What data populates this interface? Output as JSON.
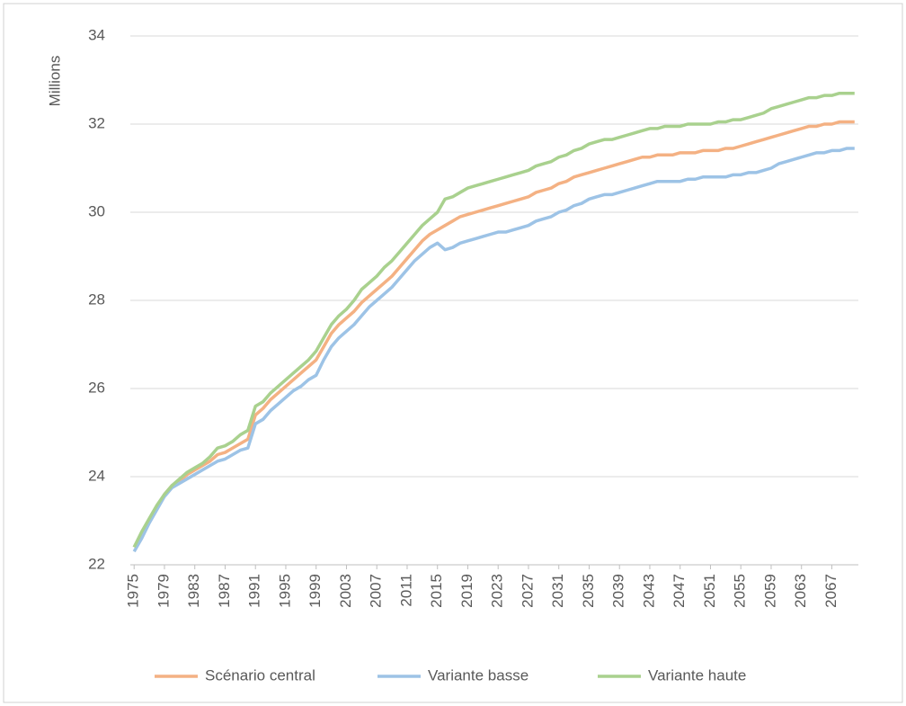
{
  "chart_data": {
    "type": "line",
    "y_label": "Millions",
    "x": [
      1975,
      1976,
      1977,
      1978,
      1979,
      1980,
      1981,
      1982,
      1983,
      1984,
      1985,
      1986,
      1987,
      1988,
      1989,
      1990,
      1991,
      1992,
      1993,
      1994,
      1995,
      1996,
      1997,
      1998,
      1999,
      2000,
      2001,
      2002,
      2003,
      2004,
      2005,
      2006,
      2007,
      2008,
      2009,
      2010,
      2011,
      2012,
      2013,
      2014,
      2015,
      2016,
      2017,
      2018,
      2019,
      2020,
      2021,
      2022,
      2023,
      2024,
      2025,
      2026,
      2027,
      2028,
      2029,
      2030,
      2031,
      2032,
      2033,
      2034,
      2035,
      2036,
      2037,
      2038,
      2039,
      2040,
      2041,
      2042,
      2043,
      2044,
      2045,
      2046,
      2047,
      2048,
      2049,
      2050,
      2051,
      2052,
      2053,
      2054,
      2055,
      2056,
      2057,
      2058,
      2059,
      2060,
      2061,
      2062,
      2063,
      2064,
      2065,
      2066,
      2067,
      2068,
      2069,
      2070
    ],
    "xlim": [
      1974.5,
      2070.5
    ],
    "xticks": [
      1975,
      1979,
      1983,
      1987,
      1991,
      1995,
      1999,
      2003,
      2007,
      2011,
      2015,
      2019,
      2023,
      2027,
      2031,
      2035,
      2039,
      2043,
      2047,
      2051,
      2055,
      2059,
      2063,
      2067
    ],
    "ylim": [
      22,
      34
    ],
    "yticks": [
      22,
      24,
      26,
      28,
      30,
      32,
      34
    ],
    "grid": true,
    "legend": "bottom",
    "series": [
      {
        "name": "Scénario central",
        "color": "#f4b183",
        "values": [
          22.4,
          22.7,
          23.0,
          23.3,
          23.6,
          23.8,
          23.9,
          24.05,
          24.15,
          24.25,
          24.35,
          24.5,
          24.55,
          24.65,
          24.75,
          24.85,
          25.4,
          25.55,
          25.75,
          25.9,
          26.05,
          26.2,
          26.35,
          26.5,
          26.65,
          26.95,
          27.25,
          27.45,
          27.6,
          27.75,
          27.95,
          28.1,
          28.25,
          28.4,
          28.55,
          28.75,
          28.95,
          29.15,
          29.35,
          29.5,
          29.6,
          29.7,
          29.8,
          29.9,
          29.95,
          30.0,
          30.05,
          30.1,
          30.15,
          30.2,
          30.25,
          30.3,
          30.35,
          30.45,
          30.5,
          30.55,
          30.65,
          30.7,
          30.8,
          30.85,
          30.9,
          30.95,
          31.0,
          31.05,
          31.1,
          31.15,
          31.2,
          31.25,
          31.25,
          31.3,
          31.3,
          31.3,
          31.35,
          31.35,
          31.35,
          31.4,
          31.4,
          31.4,
          31.45,
          31.45,
          31.5,
          31.55,
          31.6,
          31.65,
          31.7,
          31.75,
          31.8,
          31.85,
          31.9,
          31.95,
          31.95,
          32.0,
          32.0,
          32.05,
          32.05,
          32.05
        ]
      },
      {
        "name": "Variante basse",
        "color": "#9dc3e6",
        "values": [
          22.3,
          22.6,
          22.95,
          23.25,
          23.55,
          23.75,
          23.85,
          23.95,
          24.05,
          24.15,
          24.25,
          24.35,
          24.4,
          24.5,
          24.6,
          24.65,
          25.2,
          25.3,
          25.5,
          25.65,
          25.8,
          25.95,
          26.05,
          26.2,
          26.3,
          26.65,
          26.95,
          27.15,
          27.3,
          27.45,
          27.65,
          27.85,
          28.0,
          28.15,
          28.3,
          28.5,
          28.7,
          28.9,
          29.05,
          29.2,
          29.3,
          29.15,
          29.2,
          29.3,
          29.35,
          29.4,
          29.45,
          29.5,
          29.55,
          29.55,
          29.6,
          29.65,
          29.7,
          29.8,
          29.85,
          29.9,
          30.0,
          30.05,
          30.15,
          30.2,
          30.3,
          30.35,
          30.4,
          30.4,
          30.45,
          30.5,
          30.55,
          30.6,
          30.65,
          30.7,
          30.7,
          30.7,
          30.7,
          30.75,
          30.75,
          30.8,
          30.8,
          30.8,
          30.8,
          30.85,
          30.85,
          30.9,
          30.9,
          30.95,
          31.0,
          31.1,
          31.15,
          31.2,
          31.25,
          31.3,
          31.35,
          31.35,
          31.4,
          31.4,
          31.45,
          31.45
        ]
      },
      {
        "name": "Variante haute",
        "color": "#a9d18e",
        "values": [
          22.4,
          22.75,
          23.05,
          23.35,
          23.6,
          23.8,
          23.95,
          24.1,
          24.2,
          24.3,
          24.45,
          24.65,
          24.7,
          24.8,
          24.95,
          25.05,
          25.6,
          25.7,
          25.9,
          26.05,
          26.2,
          26.35,
          26.5,
          26.65,
          26.85,
          27.15,
          27.45,
          27.65,
          27.8,
          28.0,
          28.25,
          28.4,
          28.55,
          28.75,
          28.9,
          29.1,
          29.3,
          29.5,
          29.7,
          29.85,
          30.0,
          30.3,
          30.35,
          30.45,
          30.55,
          30.6,
          30.65,
          30.7,
          30.75,
          30.8,
          30.85,
          30.9,
          30.95,
          31.05,
          31.1,
          31.15,
          31.25,
          31.3,
          31.4,
          31.45,
          31.55,
          31.6,
          31.65,
          31.65,
          31.7,
          31.75,
          31.8,
          31.85,
          31.9,
          31.9,
          31.95,
          31.95,
          31.95,
          32.0,
          32.0,
          32.0,
          32.0,
          32.05,
          32.05,
          32.1,
          32.1,
          32.15,
          32.2,
          32.25,
          32.35,
          32.4,
          32.45,
          32.5,
          32.55,
          32.6,
          32.6,
          32.65,
          32.65,
          32.7,
          32.7,
          32.7
        ]
      }
    ]
  }
}
